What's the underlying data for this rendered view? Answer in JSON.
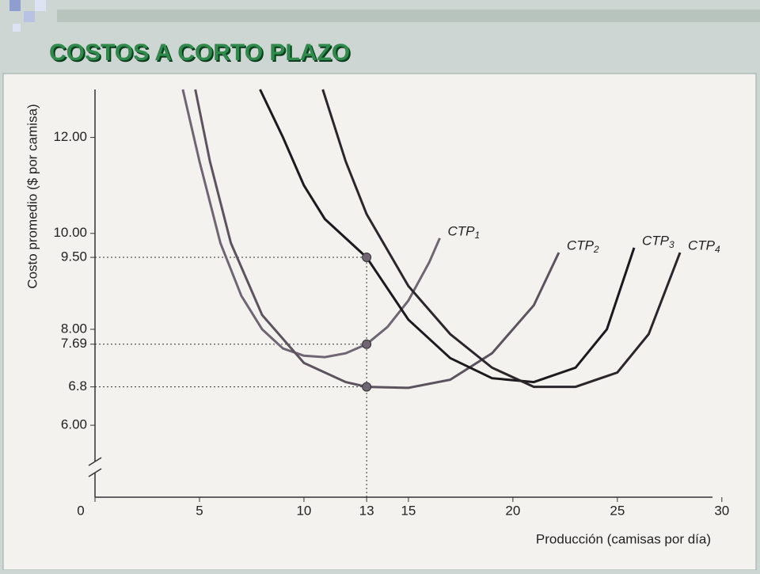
{
  "slide_title": "COSTOS A CORTO PLAZO",
  "chart_data": {
    "type": "line",
    "ylabel": "Costo promedio ($ por camisa)",
    "xlabel": "Producción (camisas por día)",
    "xlim": [
      0,
      30.5
    ],
    "xticks": [
      0,
      5,
      10,
      13,
      15,
      20,
      25,
      30
    ],
    "ylim": [
      4.5,
      13
    ],
    "yticks": [
      {
        "value": 6,
        "label": "6.00"
      },
      6.8,
      7.69,
      {
        "value": 8,
        "label": "8.00"
      },
      {
        "value": 9.5,
        "label": "9.50"
      },
      {
        "value": 10,
        "label": "10.00"
      },
      {
        "value": 12,
        "label": "12.00"
      }
    ],
    "series": [
      {
        "name": "CTP1",
        "color": "#6f6573",
        "x": [
          4.2,
          5,
          6,
          7,
          8,
          9,
          10,
          11,
          12,
          13,
          14,
          15,
          16,
          16.5
        ],
        "values": [
          13,
          11.5,
          9.8,
          8.7,
          8.0,
          7.6,
          7.45,
          7.42,
          7.5,
          7.69,
          8.05,
          8.6,
          9.4,
          9.9
        ]
      },
      {
        "name": "CTP2",
        "color": "#5c535f",
        "x": [
          4.8,
          5.5,
          6.5,
          8,
          10,
          12,
          13,
          15,
          17,
          19,
          21,
          22.2
        ],
        "values": [
          13,
          11.5,
          9.8,
          8.3,
          7.3,
          6.9,
          6.8,
          6.78,
          6.95,
          7.5,
          8.5,
          9.6
        ]
      },
      {
        "name": "CTP3",
        "color": "#1c1a1e",
        "x": [
          7.9,
          9,
          10,
          11,
          13,
          15,
          17,
          19,
          21,
          23,
          24.5,
          25.8
        ],
        "values": [
          13,
          12.0,
          11.0,
          10.3,
          9.5,
          8.2,
          7.4,
          6.98,
          6.9,
          7.2,
          8.0,
          9.7
        ]
      },
      {
        "name": "CTP4",
        "color": "#2a262c",
        "x": [
          10.9,
          12,
          13,
          15,
          17,
          19,
          21,
          23,
          25,
          26.5,
          28
        ],
        "values": [
          13,
          11.5,
          10.4,
          8.9,
          7.9,
          7.2,
          6.8,
          6.8,
          7.1,
          7.9,
          9.6
        ]
      }
    ],
    "highlight": {
      "x": 13,
      "values": [
        9.5,
        7.69,
        6.8
      ]
    }
  }
}
